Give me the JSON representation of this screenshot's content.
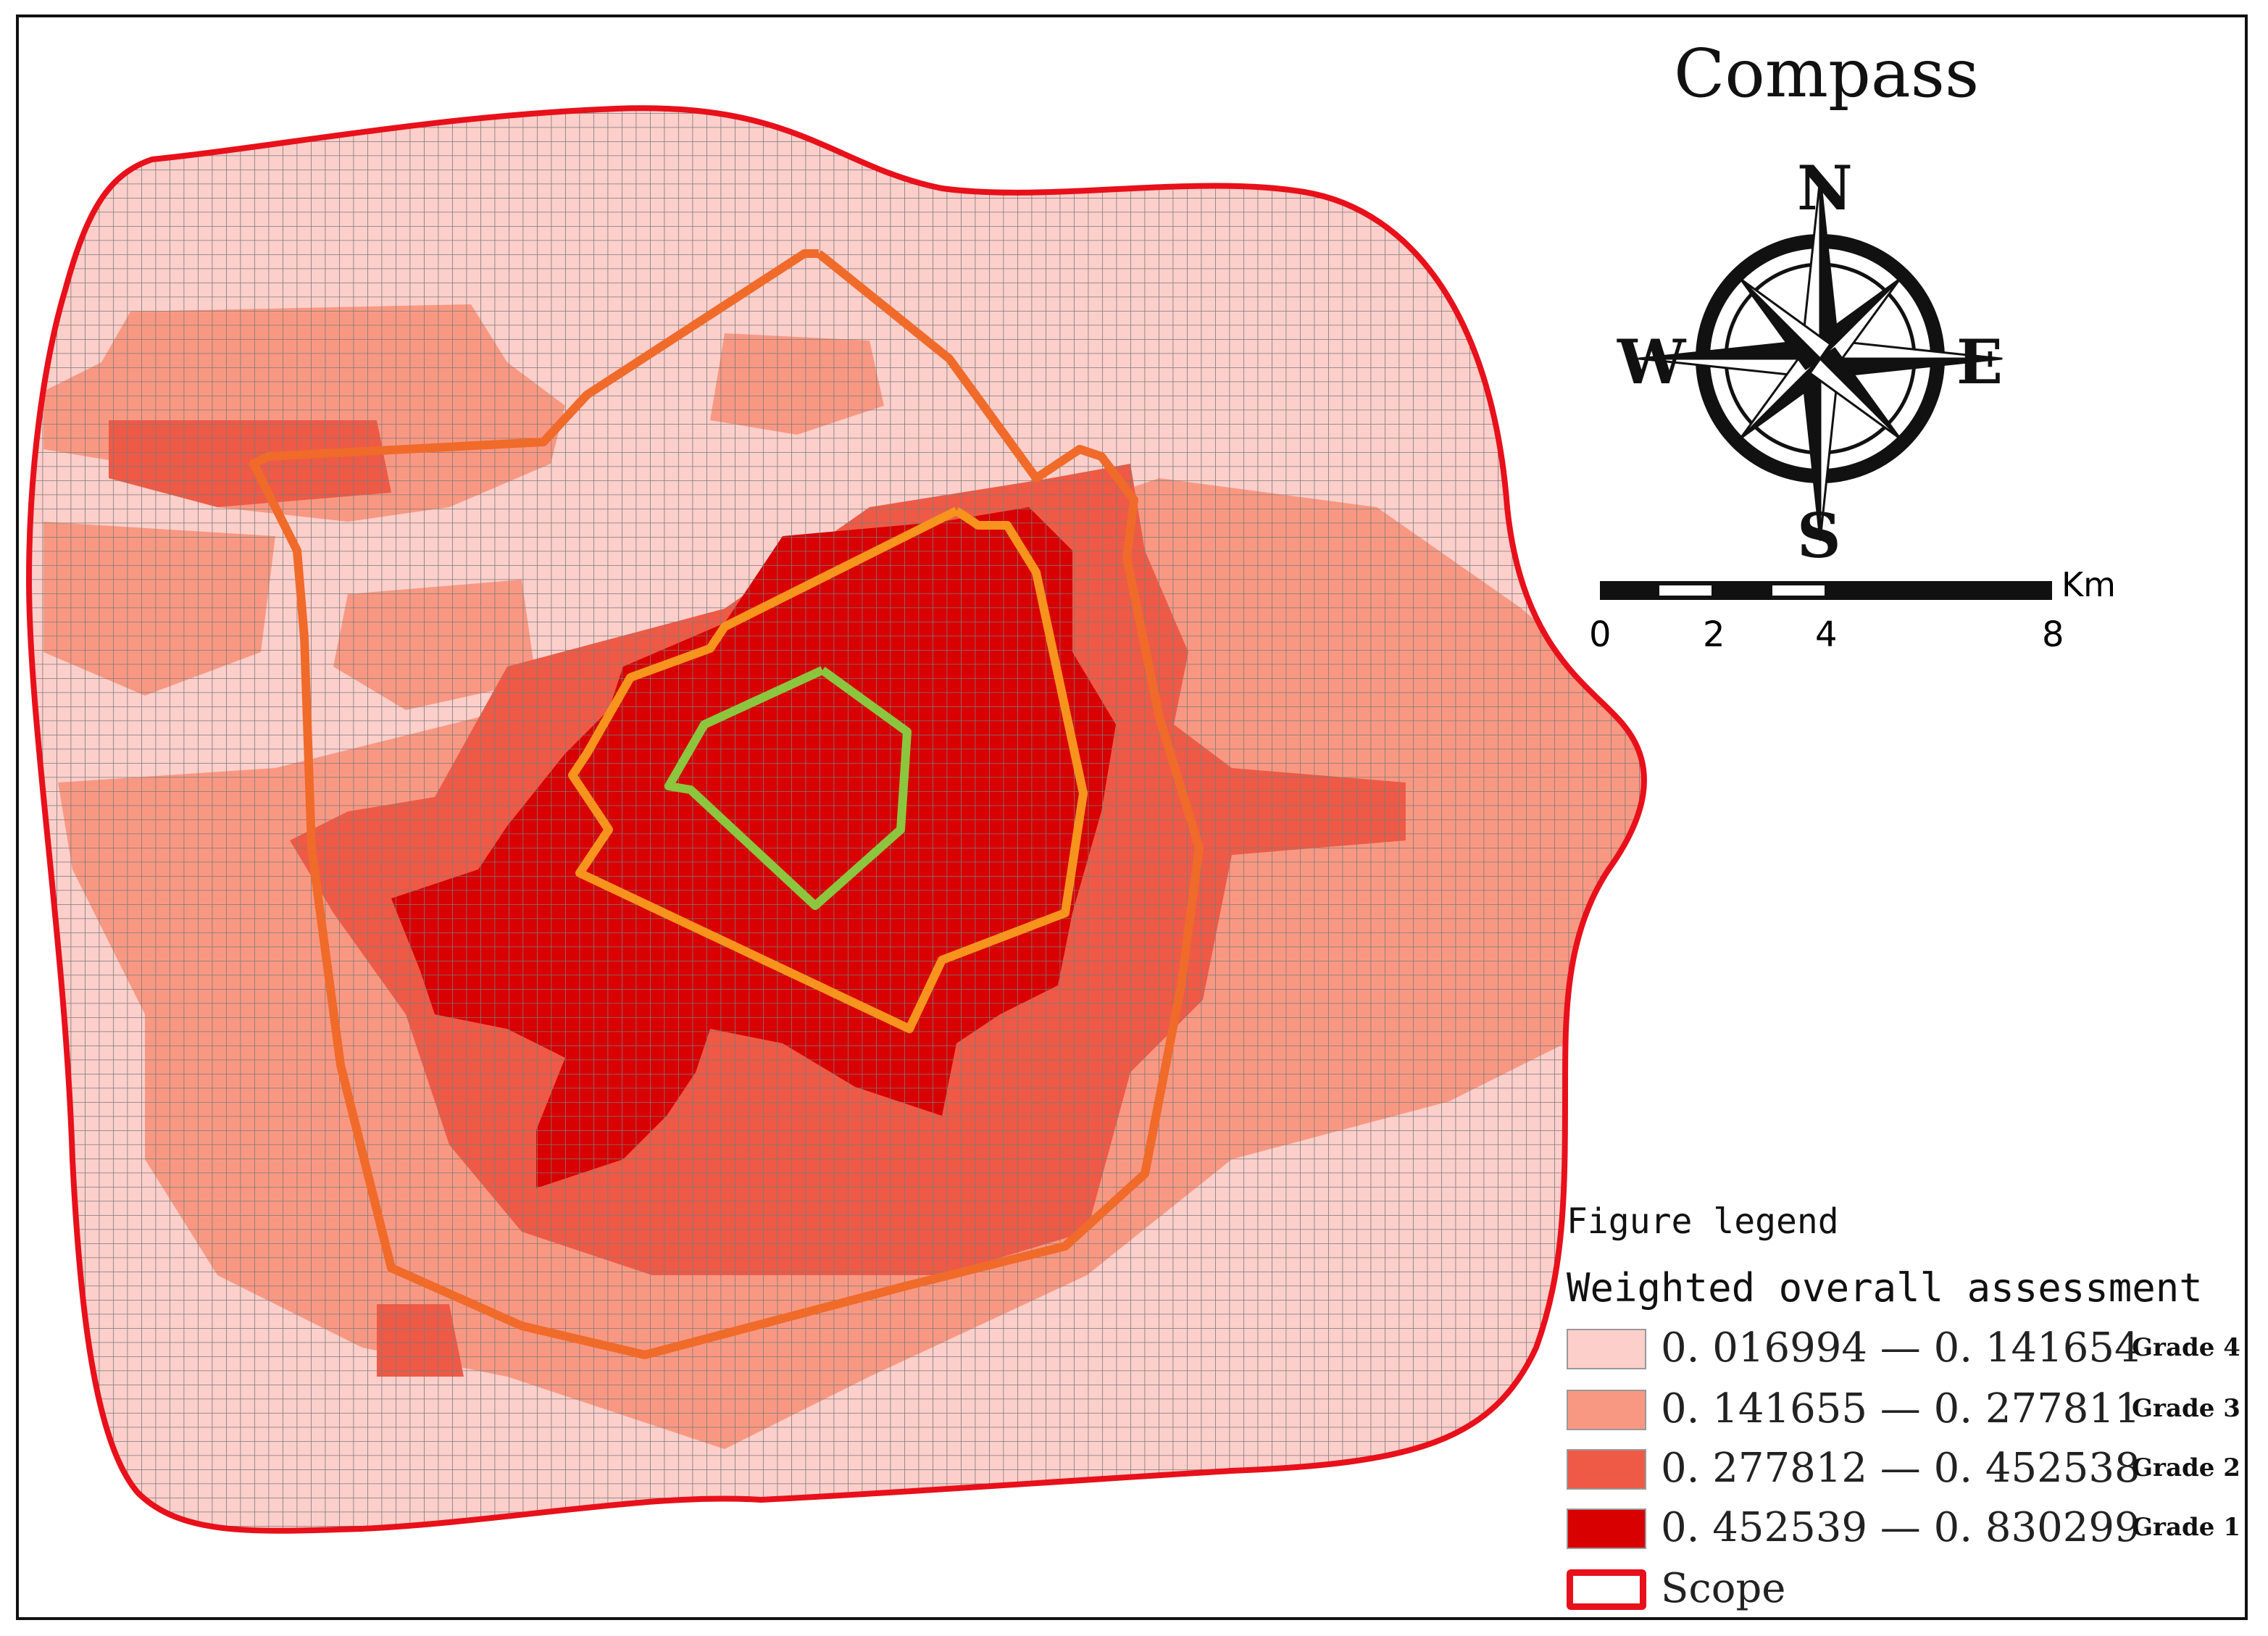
{
  "compass": {
    "title": "Compass",
    "north": "N",
    "south": "S",
    "east": "E",
    "west": "W"
  },
  "scale_bar": {
    "unit": "Km",
    "ticks": [
      "0",
      "2",
      "4",
      "8"
    ]
  },
  "legend": {
    "heading": "Figure legend",
    "subheading": "Weighted overall assessment",
    "classes": [
      {
        "range": "0. 016994 — 0. 141654",
        "grade": "Grade 4",
        "color": "#fccfcb"
      },
      {
        "range": "0. 141655 — 0. 277811",
        "grade": "Grade 3",
        "color": "#f99882"
      },
      {
        "range": "0. 277812 — 0. 452538",
        "grade": "Grade 2",
        "color": "#ee5a46"
      },
      {
        "range": "0. 452539 — 0. 830299",
        "grade": "Grade 1",
        "color": "#d80000"
      }
    ],
    "scope": {
      "label": "Scope",
      "color": "#e8101a"
    }
  },
  "map_colors": {
    "grid_line": "#7a7a7a",
    "scope_outline": "#e8101a",
    "outer_ring": "#f06a2a",
    "middle_ring": "#f7941d",
    "inner_ring": "#8cc63f"
  }
}
